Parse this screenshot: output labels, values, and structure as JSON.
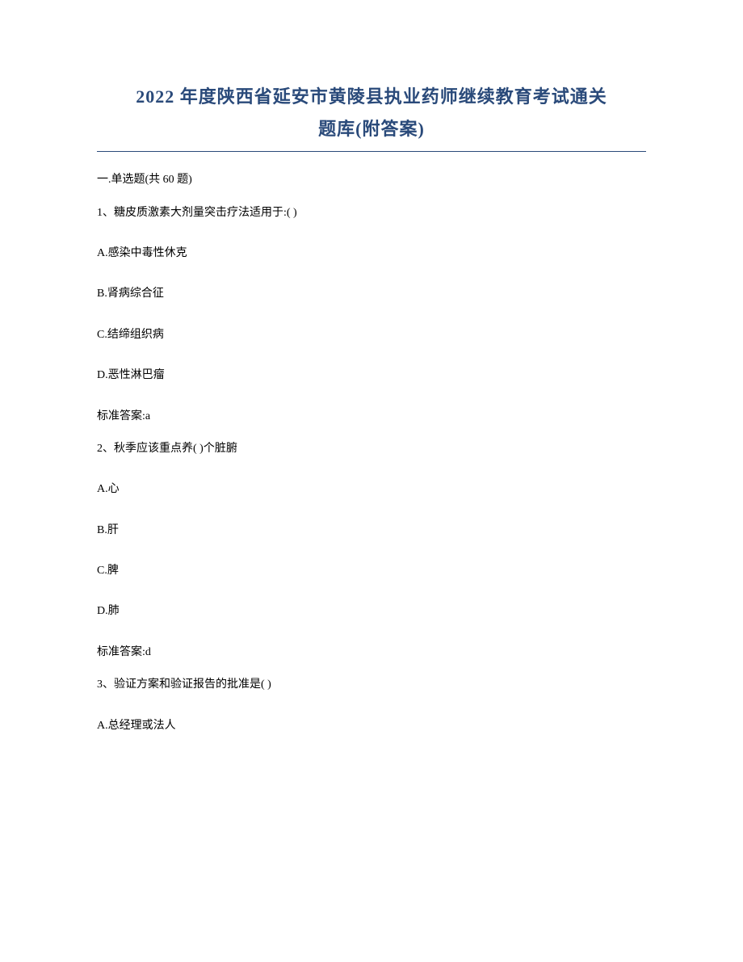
{
  "document": {
    "title_line1": "2022 年度陕西省延安市黄陵县执业药师继续教育考试通关",
    "title_line2": "题库(附答案)",
    "title_color": "#2a4a7a",
    "title_fontsize": 22,
    "body_fontsize": 14,
    "body_color": "#000000",
    "background_color": "#ffffff",
    "underline_color": "#2a4a7a"
  },
  "section": {
    "header": "一.单选题(共 60 题)"
  },
  "questions": [
    {
      "stem": "1、糖皮质激素大剂量突击疗法适用于:( )",
      "options": {
        "a": "A.感染中毒性休克",
        "b": "B.肾病综合征",
        "c": "C.结缔组织病",
        "d": "D.恶性淋巴瘤"
      },
      "answer": "标准答案:a"
    },
    {
      "stem": "2、秋季应该重点养( )个脏腑",
      "options": {
        "a": "A.心",
        "b": "B.肝",
        "c": "C.脾",
        "d": "D.肺"
      },
      "answer": "标准答案:d"
    },
    {
      "stem": "3、验证方案和验证报告的批准是( )",
      "options": {
        "a": "A.总经理或法人"
      }
    }
  ]
}
